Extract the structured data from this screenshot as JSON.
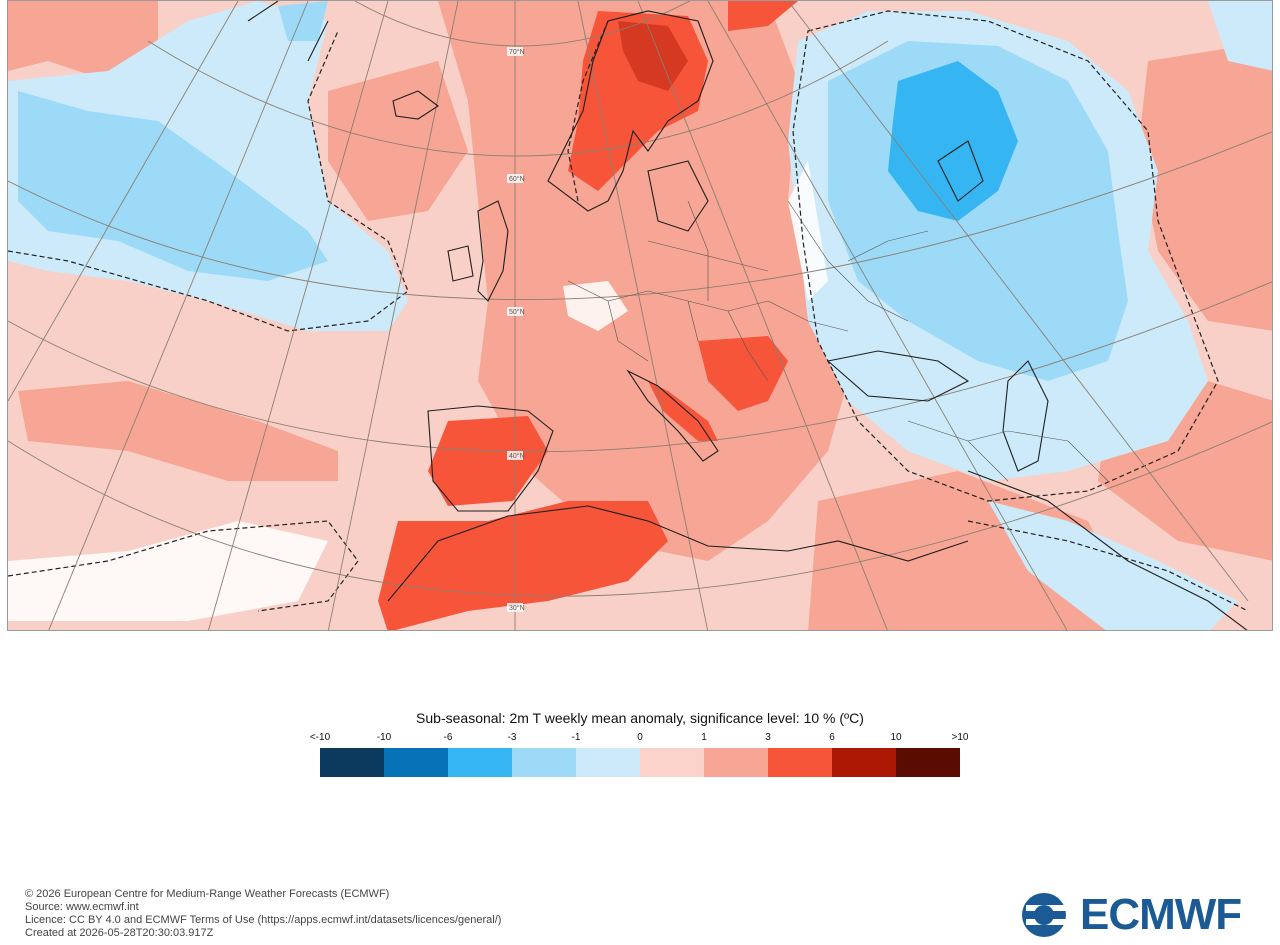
{
  "legend": {
    "title": "Sub-seasonal: 2m T weekly mean anomaly, significance level: 10 % (ºC)",
    "tick_labels": [
      "<-10",
      "-10",
      "-6",
      "-3",
      "-1",
      "0",
      "1",
      "3",
      "6",
      "10",
      ">10"
    ],
    "colors": [
      "#0b3a5e",
      "#0773b6",
      "#35b5f1",
      "#9ddaf8",
      "#cdeafa",
      "#fbd3cb",
      "#f7a594",
      "#f6553a",
      "#ac1804",
      "#5a0c02"
    ]
  },
  "map": {
    "latitude_labels": [
      "70°N",
      "60°N",
      "50°N",
      "40°N",
      "30°N"
    ]
  },
  "footer": {
    "copyright": "© 2026 European Centre for Medium-Range Weather Forecasts (ECMWF)",
    "source": "Source: www.ecmwf.int",
    "licence": "Licence: CC BY 4.0 and ECMWF Terms of Use (https://apps.ecmwf.int/datasets/licences/general/)",
    "created": "Created at 2026-05-28T20:30:03.917Z"
  },
  "logo": {
    "text": "ECMWF"
  }
}
